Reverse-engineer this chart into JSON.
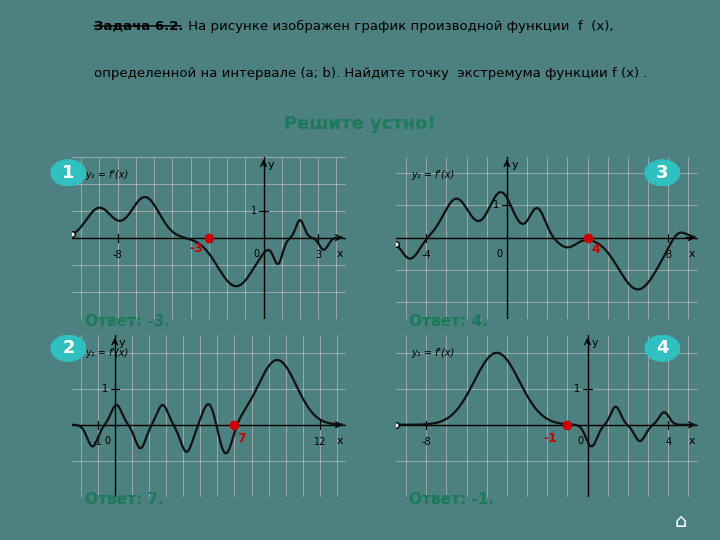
{
  "bg_color": "#4d8080",
  "header_bg": "#d8cfc0",
  "panel_bg": "#ffffff",
  "answer_color": "#1a7a5a",
  "dot_color": "#cc0000",
  "label_color": "#cc0000",
  "badge_color": "#30c0c0",
  "grid_color": "#bbbbbb",
  "curve_color": "#111111",
  "title_underline": "Задача 6.2.",
  "title_rest": " На рисунке изображен график производной функции  f  (x),",
  "title_line2": "определенной на интервале (a; b). Найдите точку  экстремума функции f (x) .",
  "subtitle": "Решите устно!",
  "answers": [
    "Ответ: -3.",
    "Ответ: 4.",
    "Ответ: 7.",
    "Ответ: -1."
  ]
}
